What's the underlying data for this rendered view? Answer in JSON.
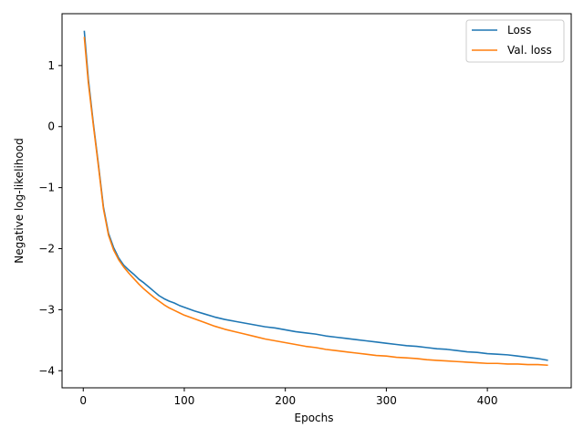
{
  "chart_data": {
    "type": "line",
    "title": "",
    "xlabel": "Epochs",
    "ylabel": "Negative log-likelihood",
    "xlim": [
      -21,
      483
    ],
    "ylim": [
      -4.28,
      1.85
    ],
    "xticks": [
      0,
      100,
      200,
      300,
      400
    ],
    "yticks": [
      -4,
      -3,
      -2,
      -1,
      0,
      1
    ],
    "grid": false,
    "legend": {
      "position": "top-right"
    },
    "series": [
      {
        "name": "Loss",
        "color": "#1f77b4",
        "x": [
          1,
          5,
          10,
          15,
          20,
          25,
          30,
          35,
          40,
          45,
          50,
          55,
          60,
          65,
          70,
          75,
          80,
          85,
          90,
          95,
          100,
          110,
          120,
          130,
          140,
          150,
          160,
          170,
          180,
          190,
          200,
          210,
          220,
          230,
          240,
          250,
          260,
          270,
          280,
          290,
          300,
          310,
          320,
          330,
          340,
          350,
          360,
          370,
          380,
          390,
          400,
          410,
          420,
          430,
          440,
          450,
          460
        ],
        "y": [
          1.57,
          0.78,
          0.05,
          -0.62,
          -1.32,
          -1.75,
          -1.98,
          -2.15,
          -2.27,
          -2.35,
          -2.42,
          -2.5,
          -2.56,
          -2.63,
          -2.7,
          -2.77,
          -2.82,
          -2.86,
          -2.89,
          -2.93,
          -2.96,
          -3.02,
          -3.07,
          -3.12,
          -3.16,
          -3.19,
          -3.22,
          -3.25,
          -3.28,
          -3.3,
          -3.33,
          -3.36,
          -3.38,
          -3.4,
          -3.43,
          -3.45,
          -3.47,
          -3.49,
          -3.51,
          -3.53,
          -3.55,
          -3.57,
          -3.59,
          -3.6,
          -3.62,
          -3.64,
          -3.65,
          -3.67,
          -3.69,
          -3.7,
          -3.72,
          -3.73,
          -3.74,
          -3.76,
          -3.78,
          -3.8,
          -3.83
        ]
      },
      {
        "name": "Val. loss",
        "color": "#ff7f0e",
        "x": [
          1,
          5,
          10,
          15,
          20,
          25,
          30,
          35,
          40,
          45,
          50,
          55,
          60,
          65,
          70,
          75,
          80,
          85,
          90,
          95,
          100,
          110,
          120,
          130,
          140,
          150,
          160,
          170,
          180,
          190,
          200,
          210,
          220,
          230,
          240,
          250,
          260,
          270,
          280,
          290,
          300,
          310,
          320,
          330,
          340,
          350,
          360,
          370,
          380,
          390,
          400,
          410,
          420,
          430,
          440,
          450,
          460
        ],
        "y": [
          1.47,
          0.72,
          0.02,
          -0.65,
          -1.35,
          -1.78,
          -2.02,
          -2.18,
          -2.3,
          -2.4,
          -2.49,
          -2.58,
          -2.66,
          -2.73,
          -2.8,
          -2.86,
          -2.92,
          -2.97,
          -3.01,
          -3.05,
          -3.09,
          -3.15,
          -3.21,
          -3.27,
          -3.32,
          -3.36,
          -3.4,
          -3.44,
          -3.48,
          -3.51,
          -3.54,
          -3.57,
          -3.6,
          -3.62,
          -3.65,
          -3.67,
          -3.69,
          -3.71,
          -3.73,
          -3.75,
          -3.76,
          -3.78,
          -3.79,
          -3.8,
          -3.82,
          -3.83,
          -3.84,
          -3.85,
          -3.86,
          -3.87,
          -3.88,
          -3.88,
          -3.89,
          -3.89,
          -3.9,
          -3.9,
          -3.91
        ]
      }
    ]
  }
}
